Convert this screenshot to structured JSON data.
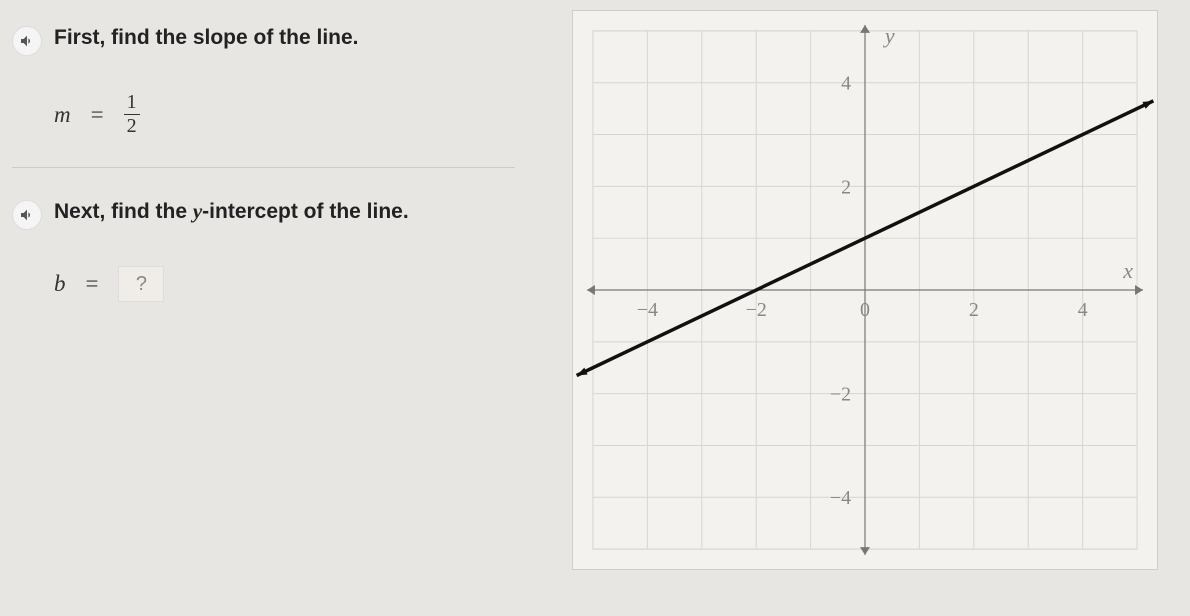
{
  "step1": {
    "instruction": "First, find the slope of the line.",
    "variable": "m",
    "equals": "=",
    "fraction_num": "1",
    "fraction_den": "2"
  },
  "step2": {
    "instruction_prefix": "Next, find the ",
    "instruction_var": "y",
    "instruction_suffix": "-intercept of the line.",
    "variable": "b",
    "equals": "=",
    "placeholder": "?"
  },
  "graph": {
    "type": "line",
    "xlim": [
      -5,
      5
    ],
    "ylim": [
      -5,
      5
    ],
    "xtick_step": 2,
    "ytick_step": 2,
    "minor_step": 1,
    "x_axis_label": "x",
    "y_axis_label": "y",
    "x_tick_labels": {
      "-4": "−4",
      "-2": "−2",
      "0": "0",
      "2": "2",
      "4": "4"
    },
    "y_tick_labels": {
      "-4": "−4",
      "-2": "−2",
      "2": "2",
      "4": "4"
    },
    "background_color": "#f4f2ee",
    "grid_color": "#d8d5d0",
    "grid_width": 1,
    "axis_color": "#777",
    "axis_width": 1.2,
    "tick_font_color": "#888",
    "tick_font_size": 20,
    "axis_label_font_color": "#888",
    "axis_label_font_size": 22,
    "line": {
      "slope": 0.5,
      "intercept": 1,
      "color": "#111",
      "width": 3.5,
      "endpoints": [
        [
          -5.3,
          -1.65
        ],
        [
          5.3,
          3.65
        ]
      ]
    }
  }
}
